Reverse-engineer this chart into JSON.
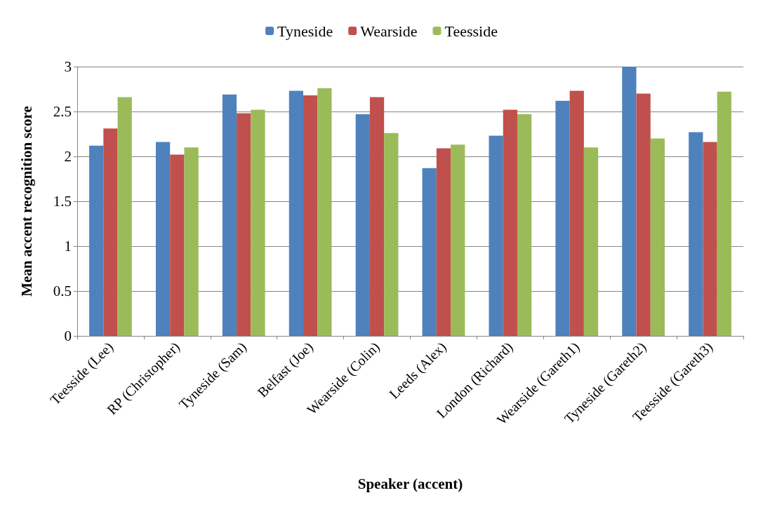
{
  "chart_data": {
    "type": "bar",
    "xlabel": "Speaker (accent)",
    "ylabel": "Mean accent recognition score",
    "categories": [
      "Teesside (Lee)",
      "RP (Christopher)",
      "Tyneside (Sam)",
      "Belfast (Joe)",
      "Wearside (Colin)",
      "Leeds (Alex)",
      "London (Richard)",
      "Wearside (Gareth1)",
      "Tyneside (Gareth2)",
      "Teesside (Gareth3)"
    ],
    "series": [
      {
        "name": "Tyneside",
        "color": "#4f81bd",
        "values": [
          2.12,
          2.16,
          2.69,
          2.73,
          2.47,
          1.87,
          2.23,
          2.62,
          3.0,
          2.27
        ]
      },
      {
        "name": "Wearside",
        "color": "#c0504d",
        "values": [
          2.31,
          2.02,
          2.48,
          2.68,
          2.66,
          2.09,
          2.52,
          2.73,
          2.7,
          2.16
        ]
      },
      {
        "name": "Teesside",
        "color": "#9bbb59",
        "values": [
          2.66,
          2.1,
          2.52,
          2.76,
          2.26,
          2.13,
          2.47,
          2.1,
          2.2,
          2.72
        ]
      }
    ],
    "ylim": [
      0,
      3
    ],
    "yticks": [
      0,
      0.5,
      1,
      1.5,
      2,
      2.5,
      3
    ],
    "grid": "y",
    "legend": "top"
  }
}
